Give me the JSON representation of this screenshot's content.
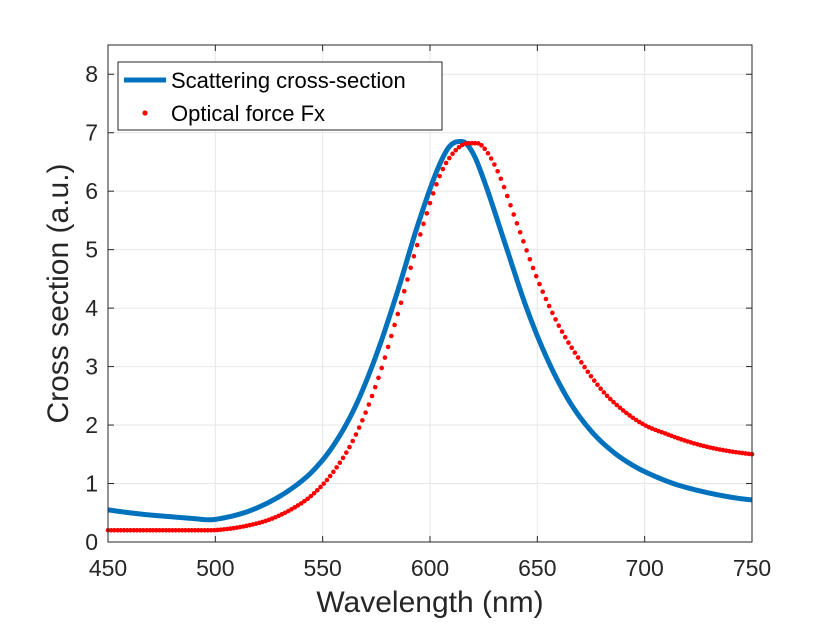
{
  "chart_data": {
    "type": "line",
    "title": "",
    "xlabel": "Wavelength (nm)",
    "ylabel": "Cross section (a.u.)",
    "xlim": [
      450,
      750
    ],
    "ylim": [
      0,
      8.5
    ],
    "xticks": [
      450,
      500,
      550,
      600,
      650,
      700,
      750
    ],
    "yticks": [
      0,
      1,
      2,
      3,
      4,
      5,
      6,
      7,
      8
    ],
    "grid": true,
    "legend_position": "top-left",
    "series": [
      {
        "name": "Scattering cross-section",
        "style": "solid",
        "color": "#0072BD",
        "x": [
          450,
          460,
          470,
          480,
          490,
          497,
          505,
          515,
          525,
          535,
          545,
          555,
          565,
          575,
          585,
          595,
          605,
          610,
          615,
          620,
          625,
          635,
          645,
          655,
          665,
          675,
          685,
          695,
          705,
          715,
          725,
          735,
          745,
          750
        ],
        "y": [
          0.55,
          0.5,
          0.46,
          0.43,
          0.4,
          0.38,
          0.42,
          0.52,
          0.68,
          0.9,
          1.2,
          1.65,
          2.3,
          3.2,
          4.3,
          5.5,
          6.5,
          6.8,
          6.85,
          6.65,
          6.2,
          5.1,
          4.0,
          3.1,
          2.4,
          1.9,
          1.55,
          1.3,
          1.12,
          0.98,
          0.88,
          0.8,
          0.74,
          0.72
        ]
      },
      {
        "name": "Optical force Fx",
        "style": "dotted",
        "color": "#FF0000",
        "x": [
          450,
          460,
          470,
          480,
          490,
          497,
          505,
          515,
          525,
          535,
          545,
          555,
          565,
          575,
          585,
          595,
          605,
          612,
          618,
          622,
          626,
          632,
          640,
          650,
          660,
          670,
          680,
          690,
          700,
          710,
          720,
          730,
          740,
          750
        ],
        "y": [
          0.2,
          0.2,
          0.2,
          0.2,
          0.2,
          0.2,
          0.22,
          0.28,
          0.38,
          0.55,
          0.8,
          1.2,
          1.8,
          2.7,
          3.9,
          5.2,
          6.3,
          6.7,
          6.82,
          6.82,
          6.7,
          6.3,
          5.5,
          4.5,
          3.7,
          3.1,
          2.6,
          2.25,
          2.0,
          1.85,
          1.72,
          1.62,
          1.55,
          1.5
        ]
      }
    ]
  }
}
